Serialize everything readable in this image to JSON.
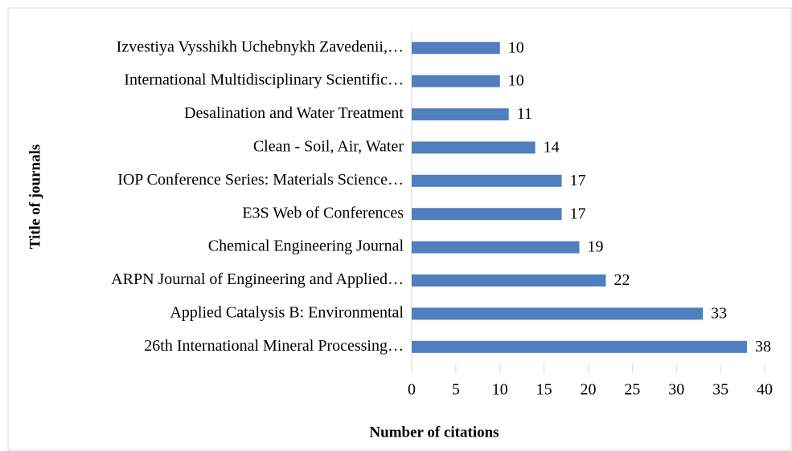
{
  "chart_data": {
    "type": "bar",
    "orientation": "horizontal",
    "xlabel": "Number of citations",
    "ylabel": "Title of journals",
    "categories": [
      "Izvestiya Vysshikh Uchebnykh Zavedenii,…",
      "International Multidisciplinary Scientific…",
      "Desalination and Water Treatment",
      "Clean - Soil, Air, Water",
      "IOP Conference Series: Materials Science…",
      "E3S Web of Conferences",
      "Chemical Engineering Journal",
      "ARPN Journal of Engineering and Applied…",
      "Applied Catalysis B: Environmental",
      "26th International Mineral Processing…"
    ],
    "values": [
      10,
      10,
      11,
      14,
      17,
      17,
      19,
      22,
      33,
      38
    ],
    "color": "#4f7fbe",
    "xlim": [
      0,
      40
    ],
    "xticks": [
      0,
      5,
      10,
      15,
      20,
      25,
      30,
      35,
      40
    ],
    "grid": false
  }
}
